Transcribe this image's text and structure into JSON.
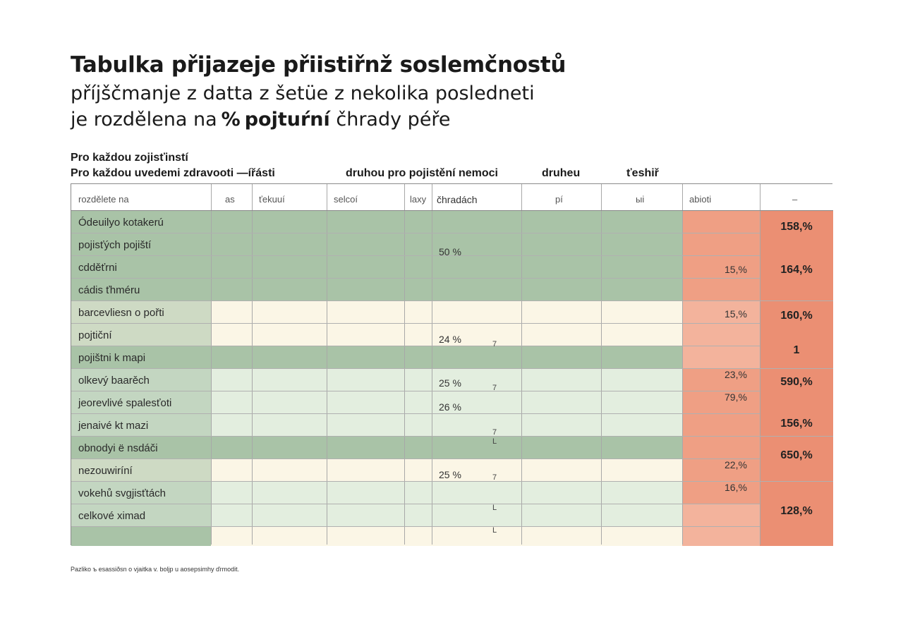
{
  "title": "Tabulka přijazeje přiistiřnž soslemčnostů",
  "subtitle_line1": "příjščmanje z datta z šetüe z nekolika posledneti",
  "subtitle_line2_a": "je rozdělena na",
  "subtitle_line2_pct": "%",
  "subtitle_line2_b": "pojtuŕní",
  "subtitle_line2_c": "čhrady péře",
  "caption": "Pro každou zojisťinstí",
  "headers": {
    "h1": "Pro každou uvedemi zdravooti —ířásti",
    "h2": "druhou pro pojistění nemoci",
    "h3": "druheu",
    "h4": "ťeshiř"
  },
  "columns": [
    "rozdělete na",
    "as",
    "ťekuuí",
    "selcoí",
    "laxy",
    "čhradách",
    "pí",
    "ыi",
    "abioti",
    "–"
  ],
  "rows": [
    "Ódeuilyo kotakerú",
    "pojisťých pojiští",
    "cdděťrni",
    "cádis ťhméru",
    "barcevliesn o pořti",
    "pojtiční",
    "pojištni k mapi",
    "olkevý baarěch",
    "jeorevlivé spalesťoti",
    "jenaivé kt mazi",
    "obnodyi ë nsdáči",
    "nezouwiríní",
    "vokehů svgjisťtách",
    "celkové ximad"
  ],
  "mid_values": [
    "50 %",
    "24 %",
    "25 %",
    "26 %",
    "25 %"
  ],
  "marks": [
    "7",
    "7",
    "7",
    "L",
    "7",
    "L",
    "L"
  ],
  "red_values": [
    "15,%",
    "15,%",
    "23,%",
    "79,%",
    "22,%",
    "16,%"
  ],
  "totals": [
    "158,%",
    "164,%",
    "160,%",
    "1",
    "590,%",
    "156,%",
    "650,%",
    "128,%"
  ],
  "footnote": "Pazliko ъ esassiðsn o vjaitka v. boljp u aosepsimhy ďrmodit.",
  "colors": {
    "sage": "#a9c3a7",
    "pale_green": "#e3eedf",
    "cream": "#fbf6e6",
    "salmon": "#ee9c80",
    "salmon_light": "#f3b39c",
    "salmon_dark": "#eb8f73"
  }
}
